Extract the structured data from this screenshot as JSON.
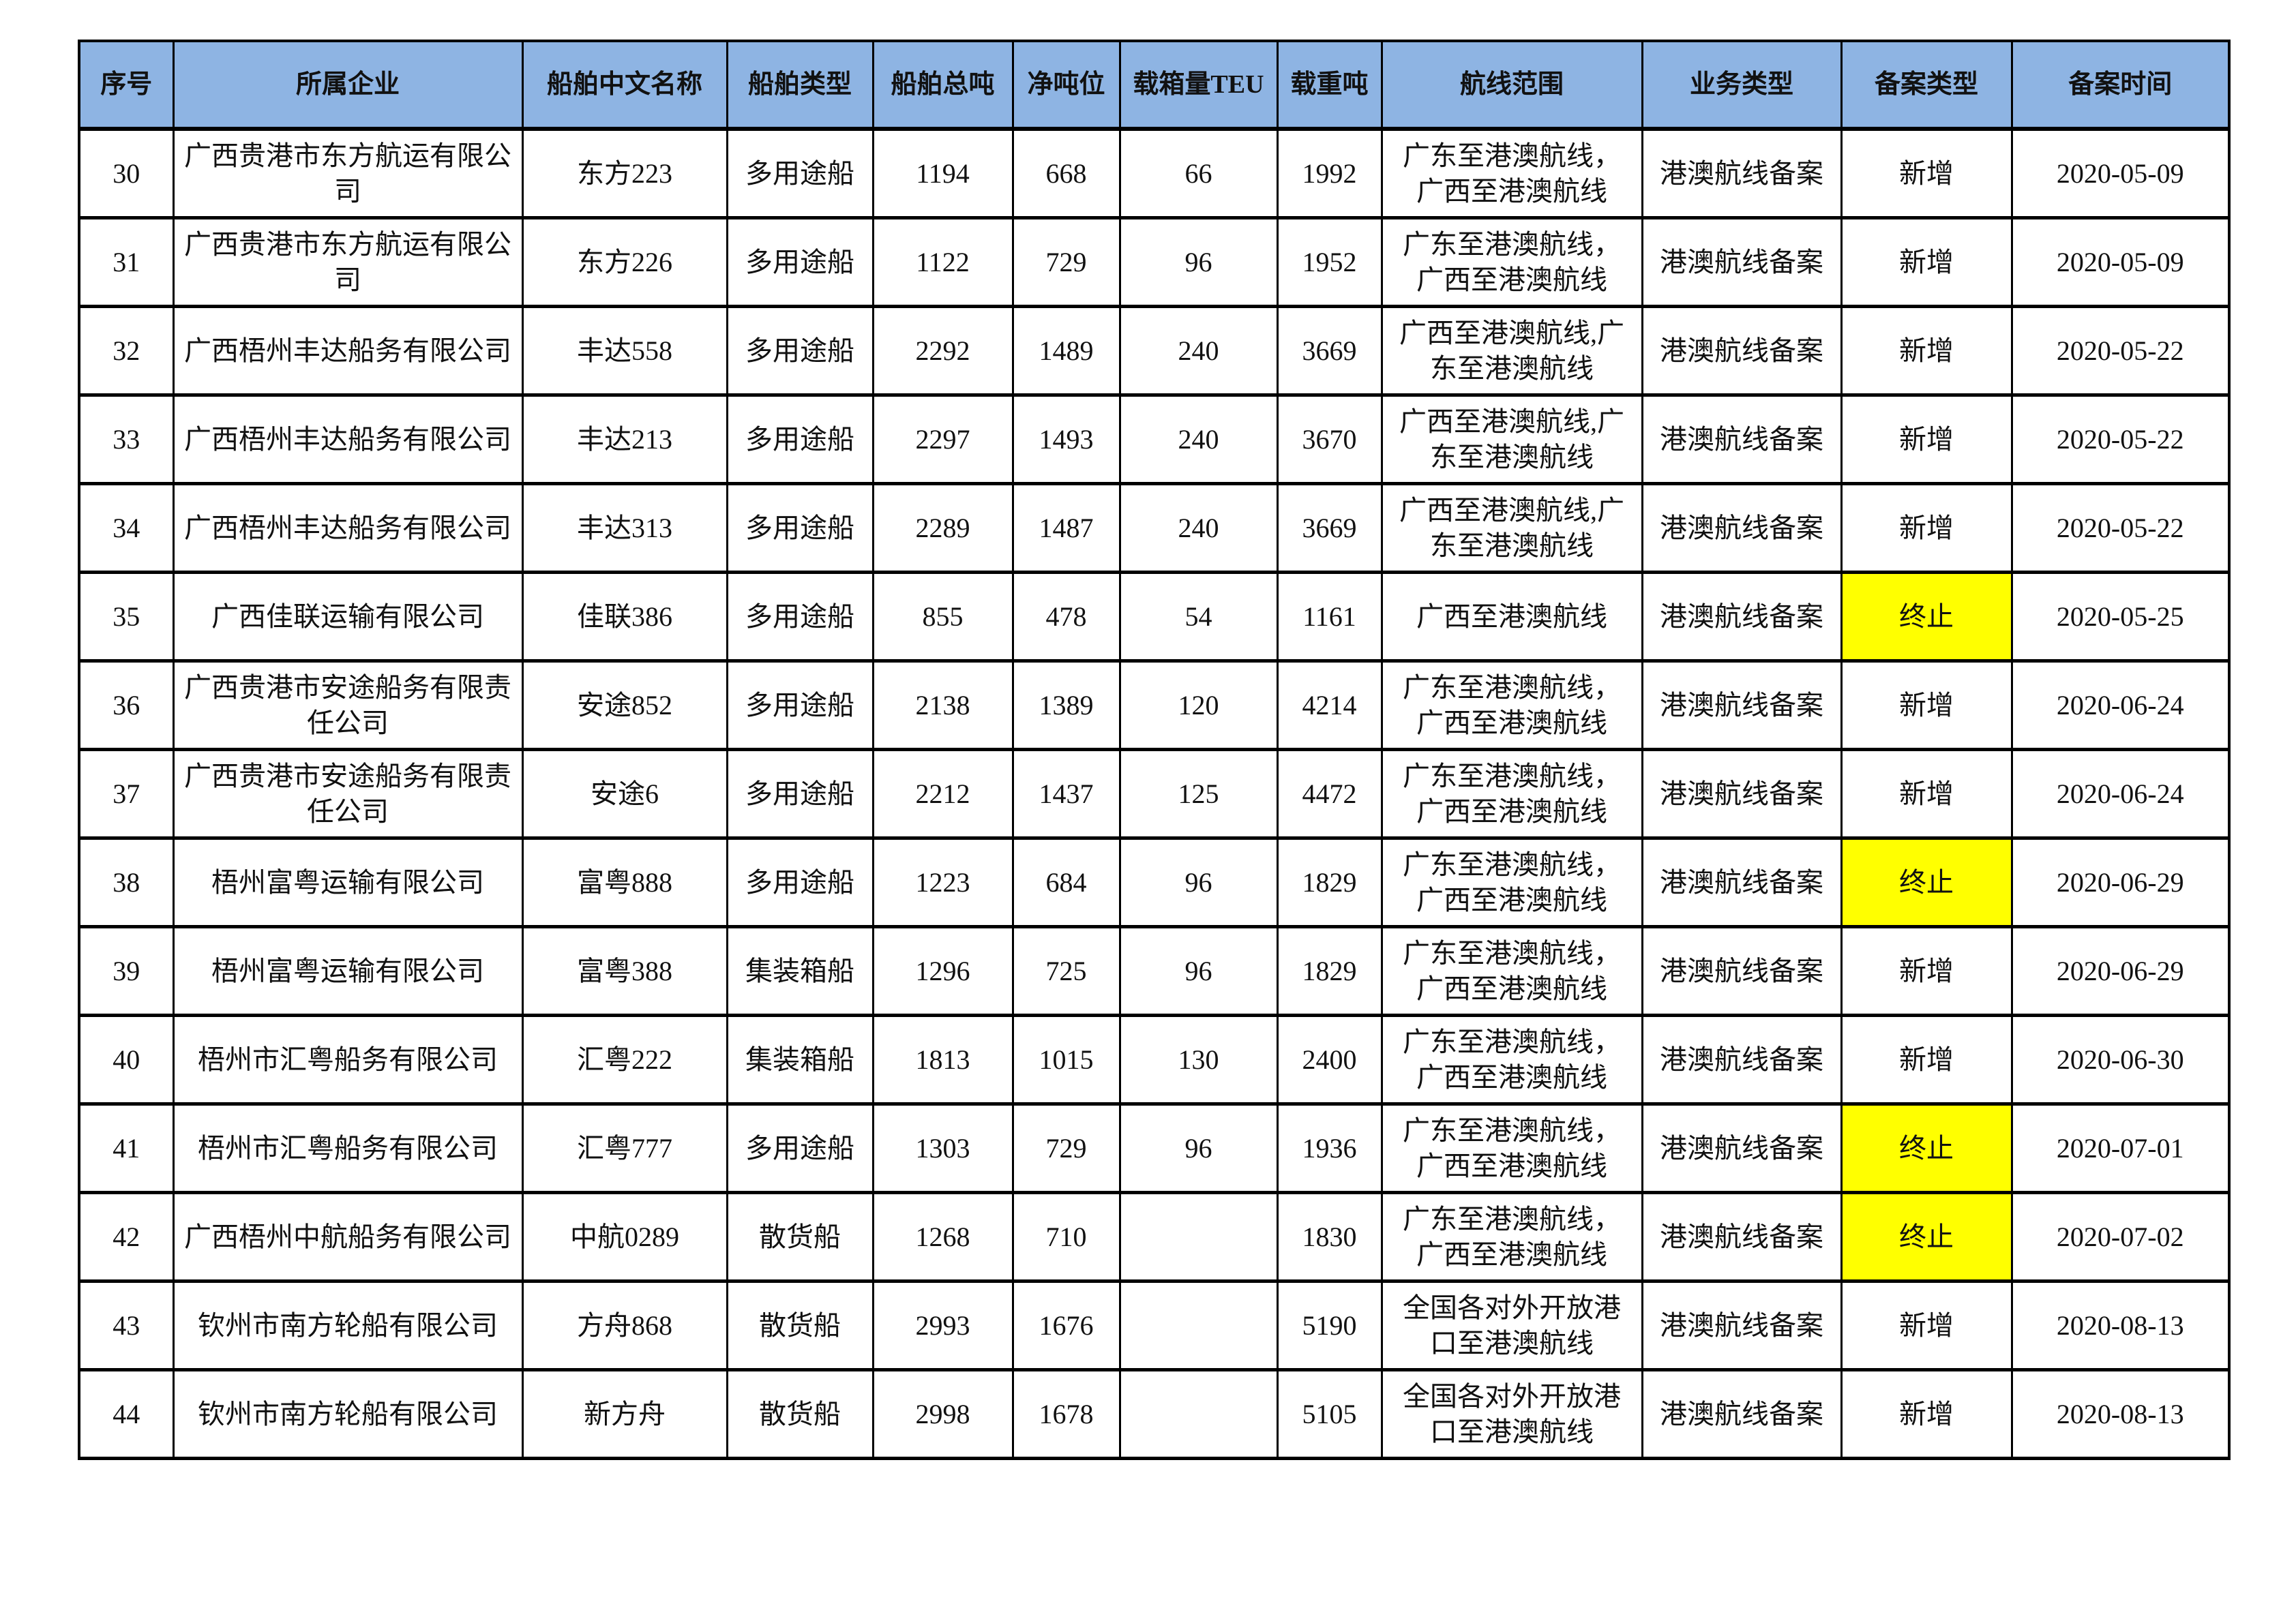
{
  "colors": {
    "header_bg": "#8EB4E3",
    "highlight": "#FFFF00"
  },
  "table": {
    "headers": [
      "序号",
      "所属企业",
      "船舶中文名称",
      "船舶类型",
      "船舶总吨",
      "净吨位",
      "载箱量TEU",
      "载重吨",
      "航线范围",
      "业务类型",
      "备案类型",
      "备案时间"
    ],
    "rows": [
      [
        "30",
        "广西贵港市东方航运有限公司",
        "东方223",
        "多用途船",
        "1194",
        "668",
        "66",
        "1992",
        "广东至港澳航线，广西至港澳航线",
        "港澳航线备案",
        "新增",
        "2020-05-09"
      ],
      [
        "31",
        "广西贵港市东方航运有限公司",
        "东方226",
        "多用途船",
        "1122",
        "729",
        "96",
        "1952",
        "广东至港澳航线，广西至港澳航线",
        "港澳航线备案",
        "新增",
        "2020-05-09"
      ],
      [
        "32",
        "广西梧州丰达船务有限公司",
        "丰达558",
        "多用途船",
        "2292",
        "1489",
        "240",
        "3669",
        "广西至港澳航线,广东至港澳航线",
        "港澳航线备案",
        "新增",
        "2020-05-22"
      ],
      [
        "33",
        "广西梧州丰达船务有限公司",
        "丰达213",
        "多用途船",
        "2297",
        "1493",
        "240",
        "3670",
        "广西至港澳航线,广东至港澳航线",
        "港澳航线备案",
        "新增",
        "2020-05-22"
      ],
      [
        "34",
        "广西梧州丰达船务有限公司",
        "丰达313",
        "多用途船",
        "2289",
        "1487",
        "240",
        "3669",
        "广西至港澳航线,广东至港澳航线",
        "港澳航线备案",
        "新增",
        "2020-05-22"
      ],
      [
        "35",
        "广西佳联运输有限公司",
        "佳联386",
        "多用途船",
        "855",
        "478",
        "54",
        "1161",
        "广西至港澳航线",
        "港澳航线备案",
        "终止",
        "2020-05-25"
      ],
      [
        "36",
        "广西贵港市安途船务有限责任公司",
        "安途852",
        "多用途船",
        "2138",
        "1389",
        "120",
        "4214",
        "广东至港澳航线，广西至港澳航线",
        "港澳航线备案",
        "新增",
        "2020-06-24"
      ],
      [
        "37",
        "广西贵港市安途船务有限责任公司",
        "安途6",
        "多用途船",
        "2212",
        "1437",
        "125",
        "4472",
        "广东至港澳航线，广西至港澳航线",
        "港澳航线备案",
        "新增",
        "2020-06-24"
      ],
      [
        "38",
        "梧州富粤运输有限公司",
        "富粤888",
        "多用途船",
        "1223",
        "684",
        "96",
        "1829",
        "广东至港澳航线，广西至港澳航线",
        "港澳航线备案",
        "终止",
        "2020-06-29"
      ],
      [
        "39",
        "梧州富粤运输有限公司",
        "富粤388",
        "集装箱船",
        "1296",
        "725",
        "96",
        "1829",
        "广东至港澳航线，广西至港澳航线",
        "港澳航线备案",
        "新增",
        "2020-06-29"
      ],
      [
        "40",
        "梧州市汇粤船务有限公司",
        "汇粤222",
        "集装箱船",
        "1813",
        "1015",
        "130",
        "2400",
        "广东至港澳航线，广西至港澳航线",
        "港澳航线备案",
        "新增",
        "2020-06-30"
      ],
      [
        "41",
        "梧州市汇粤船务有限公司",
        "汇粤777",
        "多用途船",
        "1303",
        "729",
        "96",
        "1936",
        "广东至港澳航线，广西至港澳航线",
        "港澳航线备案",
        "终止",
        "2020-07-01"
      ],
      [
        "42",
        "广西梧州中航船务有限公司",
        "中航0289",
        "散货船",
        "1268",
        "710",
        "",
        "1830",
        "广东至港澳航线，广西至港澳航线",
        "港澳航线备案",
        "终止",
        "2020-07-02"
      ],
      [
        "43",
        "钦州市南方轮船有限公司",
        "方舟868",
        "散货船",
        "2993",
        "1676",
        "",
        "5190",
        "全国各对外开放港口至港澳航线",
        "港澳航线备案",
        "新增",
        "2020-08-13"
      ],
      [
        "44",
        "钦州市南方轮船有限公司",
        "新方舟",
        "散货船",
        "2998",
        "1678",
        "",
        "5105",
        "全国各对外开放港口至港澳航线",
        "港澳航线备案",
        "新增",
        "2020-08-13"
      ]
    ],
    "highlighted_value": "终止"
  }
}
